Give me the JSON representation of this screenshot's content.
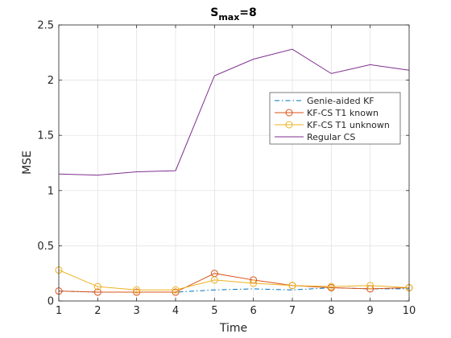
{
  "chart_data": {
    "type": "line",
    "title": "S",
    "title_sub": "max",
    "title_suffix": "=8",
    "xlabel": "Time",
    "ylabel": "MSE",
    "xlim": [
      1,
      10
    ],
    "ylim": [
      0,
      2.5
    ],
    "grid": true,
    "legend_position": "upper-right",
    "x": [
      1,
      2,
      3,
      4,
      5,
      6,
      7,
      8,
      9,
      10
    ],
    "xticks": [
      "1",
      "2",
      "3",
      "4",
      "5",
      "6",
      "7",
      "8",
      "9",
      "10"
    ],
    "yticks": [
      {
        "value": 0,
        "label": "0"
      },
      {
        "value": 0.5,
        "label": "0.5"
      },
      {
        "value": 1,
        "label": "1"
      },
      {
        "value": 1.5,
        "label": "1.5"
      },
      {
        "value": 2,
        "label": "2"
      },
      {
        "value": 2.5,
        "label": "2.5"
      }
    ],
    "series": [
      {
        "name": "Genie-aided KF",
        "color": "#0072BD",
        "dash": "dashdot",
        "marker": "none",
        "values": [
          0.09,
          0.08,
          0.08,
          0.08,
          0.1,
          0.11,
          0.1,
          0.12,
          0.11,
          0.11
        ]
      },
      {
        "name": "KF-CS T1 known",
        "color": "#D95319",
        "dash": "solid",
        "marker": "circle",
        "values": [
          0.09,
          0.08,
          0.08,
          0.08,
          0.25,
          0.19,
          0.14,
          0.12,
          0.11,
          0.12
        ]
      },
      {
        "name": "KF-CS T1 unknown",
        "color": "#EDB120",
        "dash": "solid",
        "marker": "circle",
        "values": [
          0.28,
          0.13,
          0.1,
          0.1,
          0.19,
          0.16,
          0.14,
          0.13,
          0.14,
          0.12
        ]
      },
      {
        "name": "Regular CS",
        "color": "#7E2F8E",
        "dash": "solid",
        "marker": "none",
        "values": [
          1.15,
          1.14,
          1.17,
          1.18,
          2.04,
          2.19,
          2.28,
          2.06,
          2.14,
          2.09
        ]
      }
    ]
  }
}
